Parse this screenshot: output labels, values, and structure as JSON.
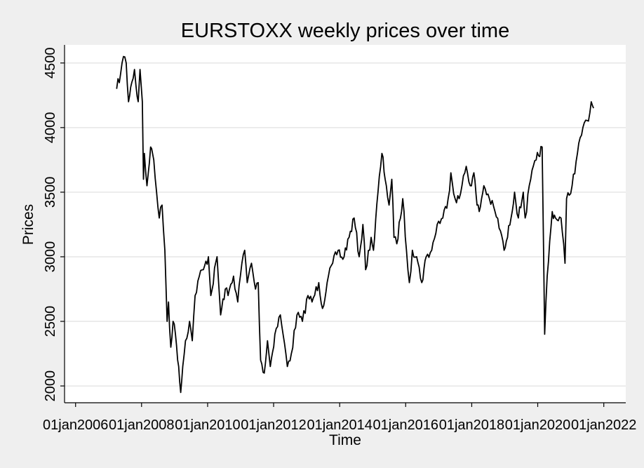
{
  "chart_data": {
    "type": "line",
    "title": "EURSTOXX weekly prices over time",
    "xlabel": "Time",
    "ylabel": "Prices",
    "x_ticks": [
      "01jan2006",
      "01jan2008",
      "01jan2010",
      "01jan2012",
      "01jan2014",
      "01jan2016",
      "01jan2018",
      "01jan2020",
      "01jan2022"
    ],
    "y_ticks": [
      2000,
      2500,
      3000,
      3500,
      4000,
      4500
    ],
    "xlim": [
      "2005-09-01",
      "2022-09-01"
    ],
    "ylim": [
      1870,
      4640
    ],
    "grid": "horizontal",
    "legend": "none",
    "colors": {
      "background": "#efefef",
      "plot_area": "#ffffff",
      "line": "#000000",
      "grid": "#e6e6e6"
    },
    "series": [
      {
        "points": [
          [
            "2007-04-01",
            4300
          ],
          [
            "2007-05-15",
            4420
          ],
          [
            "2007-06-15",
            4550
          ],
          [
            "2007-07-15",
            4500
          ],
          [
            "2007-08-10",
            4200
          ],
          [
            "2007-09-15",
            4350
          ],
          [
            "2007-10-15",
            4450
          ],
          [
            "2007-11-01",
            4320
          ],
          [
            "2007-11-25",
            4200
          ],
          [
            "2007-12-15",
            4450
          ],
          [
            "2008-01-10",
            4200
          ],
          [
            "2008-01-22",
            3600
          ],
          [
            "2008-02-01",
            3800
          ],
          [
            "2008-03-01",
            3550
          ],
          [
            "2008-04-10",
            3850
          ],
          [
            "2008-05-15",
            3750
          ],
          [
            "2008-06-15",
            3500
          ],
          [
            "2008-07-15",
            3300
          ],
          [
            "2008-08-15",
            3400
          ],
          [
            "2008-09-15",
            3050
          ],
          [
            "2008-10-10",
            2500
          ],
          [
            "2008-10-25",
            2650
          ],
          [
            "2008-11-20",
            2300
          ],
          [
            "2008-12-15",
            2500
          ],
          [
            "2009-01-10",
            2400
          ],
          [
            "2009-02-15",
            2150
          ],
          [
            "2009-03-09",
            1950
          ],
          [
            "2009-04-01",
            2150
          ],
          [
            "2009-05-01",
            2350
          ],
          [
            "2009-06-15",
            2500
          ],
          [
            "2009-07-15",
            2350
          ],
          [
            "2009-08-15",
            2700
          ],
          [
            "2009-10-01",
            2850
          ],
          [
            "2009-11-15",
            2900
          ],
          [
            "2010-01-10",
            3000
          ],
          [
            "2010-02-05",
            2700
          ],
          [
            "2010-04-15",
            3000
          ],
          [
            "2010-05-25",
            2550
          ],
          [
            "2010-07-15",
            2750
          ],
          [
            "2010-08-15",
            2700
          ],
          [
            "2010-10-15",
            2850
          ],
          [
            "2010-11-30",
            2650
          ],
          [
            "2011-01-15",
            2950
          ],
          [
            "2011-02-15",
            3050
          ],
          [
            "2011-03-15",
            2800
          ],
          [
            "2011-05-01",
            2950
          ],
          [
            "2011-06-15",
            2750
          ],
          [
            "2011-07-15",
            2800
          ],
          [
            "2011-08-10",
            2200
          ],
          [
            "2011-09-20",
            2100
          ],
          [
            "2011-10-25",
            2350
          ],
          [
            "2011-11-25",
            2150
          ],
          [
            "2012-01-15",
            2400
          ],
          [
            "2012-03-15",
            2550
          ],
          [
            "2012-04-15",
            2400
          ],
          [
            "2012-06-01",
            2150
          ],
          [
            "2012-07-15",
            2250
          ],
          [
            "2012-09-15",
            2550
          ],
          [
            "2012-11-15",
            2500
          ],
          [
            "2013-01-15",
            2700
          ],
          [
            "2013-03-01",
            2650
          ],
          [
            "2013-05-15",
            2800
          ],
          [
            "2013-06-25",
            2600
          ],
          [
            "2013-08-15",
            2800
          ],
          [
            "2013-10-15",
            2950
          ],
          [
            "2013-12-15",
            3050
          ],
          [
            "2014-02-05",
            2980
          ],
          [
            "2014-04-15",
            3150
          ],
          [
            "2014-06-10",
            3300
          ],
          [
            "2014-08-05",
            3000
          ],
          [
            "2014-09-15",
            3250
          ],
          [
            "2014-10-15",
            2900
          ],
          [
            "2014-12-15",
            3150
          ],
          [
            "2015-01-10",
            3050
          ],
          [
            "2015-03-01",
            3500
          ],
          [
            "2015-04-13",
            3800
          ],
          [
            "2015-06-01",
            3550
          ],
          [
            "2015-07-01",
            3400
          ],
          [
            "2015-08-01",
            3600
          ],
          [
            "2015-08-25",
            3150
          ],
          [
            "2015-09-25",
            3100
          ],
          [
            "2015-11-30",
            3450
          ],
          [
            "2016-01-10",
            3050
          ],
          [
            "2016-02-11",
            2800
          ],
          [
            "2016-03-15",
            3050
          ],
          [
            "2016-05-01",
            3000
          ],
          [
            "2016-06-27",
            2800
          ],
          [
            "2016-08-15",
            3000
          ],
          [
            "2016-10-15",
            3050
          ],
          [
            "2016-12-15",
            3250
          ],
          [
            "2017-02-15",
            3300
          ],
          [
            "2017-04-15",
            3450
          ],
          [
            "2017-05-15",
            3650
          ],
          [
            "2017-07-01",
            3450
          ],
          [
            "2017-08-15",
            3450
          ],
          [
            "2017-09-15",
            3550
          ],
          [
            "2017-11-01",
            3700
          ],
          [
            "2017-12-15",
            3550
          ],
          [
            "2018-01-25",
            3650
          ],
          [
            "2018-03-01",
            3400
          ],
          [
            "2018-03-25",
            3350
          ],
          [
            "2018-05-15",
            3550
          ],
          [
            "2018-07-15",
            3450
          ],
          [
            "2018-09-15",
            3350
          ],
          [
            "2018-11-15",
            3200
          ],
          [
            "2018-12-25",
            3050
          ],
          [
            "2019-02-01",
            3150
          ],
          [
            "2019-04-20",
            3500
          ],
          [
            "2019-06-01",
            3300
          ],
          [
            "2019-07-25",
            3500
          ],
          [
            "2019-08-15",
            3300
          ],
          [
            "2019-10-15",
            3600
          ],
          [
            "2019-12-15",
            3750
          ],
          [
            "2020-02-19",
            3850
          ],
          [
            "2020-03-18",
            2400
          ],
          [
            "2020-04-15",
            2850
          ],
          [
            "2020-06-10",
            3350
          ],
          [
            "2020-07-15",
            3300
          ],
          [
            "2020-09-15",
            3300
          ],
          [
            "2020-10-29",
            2950
          ],
          [
            "2020-11-15",
            3450
          ],
          [
            "2021-01-15",
            3550
          ],
          [
            "2021-03-15",
            3800
          ],
          [
            "2021-05-15",
            4000
          ],
          [
            "2021-07-15",
            4050
          ],
          [
            "2021-08-15",
            4200
          ],
          [
            "2021-09-10",
            4150
          ]
        ]
      }
    ]
  }
}
